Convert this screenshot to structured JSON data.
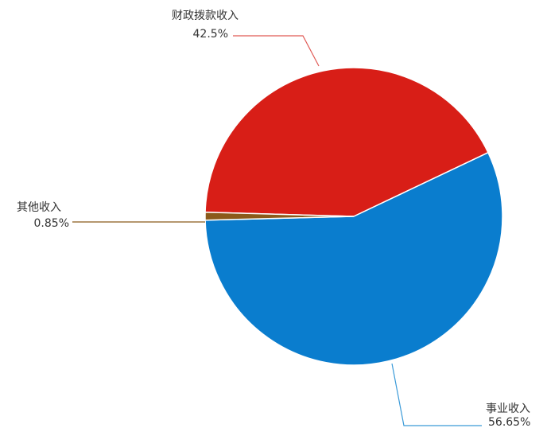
{
  "chart_data": {
    "type": "pie",
    "slices": [
      {
        "name": "财政拨款收入",
        "value": 42.5,
        "label": "42.5%",
        "color": "#d81e17",
        "line_color": "#e05a55"
      },
      {
        "name": "事业收入",
        "value": 56.65,
        "label": "56.65%",
        "color": "#0a7dce",
        "line_color": "#3a9ad8"
      },
      {
        "name": "其他收入",
        "value": 0.85,
        "label": "0.85%",
        "color": "#8b5a1a",
        "line_color": "#8b5a1a"
      }
    ],
    "legend": "none"
  }
}
